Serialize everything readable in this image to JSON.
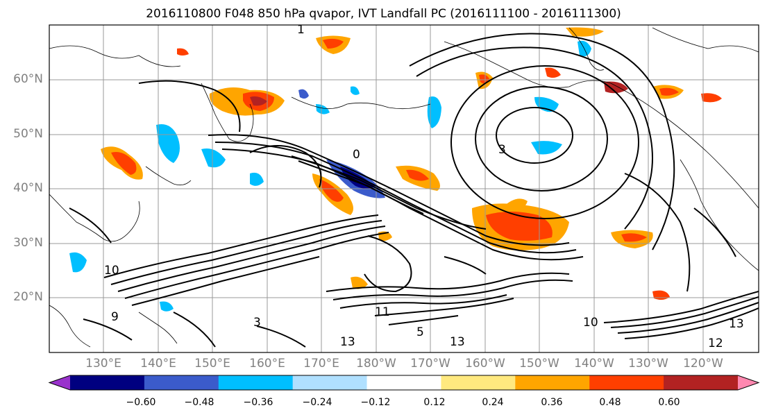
{
  "title": "2016110800 F048 850 hPa qvapor, IVT Landfall PC (2016111100 - 2016111300)",
  "lat_labels": [
    "60°N",
    "50°N",
    "40°N",
    "30°N",
    "20°N"
  ],
  "lon_labels": [
    "130°E",
    "140°E",
    "150°E",
    "160°E",
    "170°E",
    "180°W",
    "170°W",
    "160°W",
    "150°W",
    "140°W",
    "130°W",
    "120°W"
  ],
  "contour_labels": [
    "1",
    "3",
    "0",
    "3",
    "10",
    "11",
    "13",
    "12",
    "9",
    "10",
    "13",
    "5",
    "13"
  ],
  "colorbar": {
    "colors": [
      "#9932cc",
      "#000080",
      "#3b5bcb",
      "#00bfff",
      "#b0e0ff",
      "#ffffff",
      "#ffe97f",
      "#ffa500",
      "#ff3f00",
      "#b22222",
      "#ff88b0"
    ],
    "labels": [
      "−0.60",
      "−0.48",
      "−0.36",
      "−0.24",
      "−0.12",
      "0.12",
      "0.24",
      "0.36",
      "0.48",
      "0.60"
    ]
  }
}
